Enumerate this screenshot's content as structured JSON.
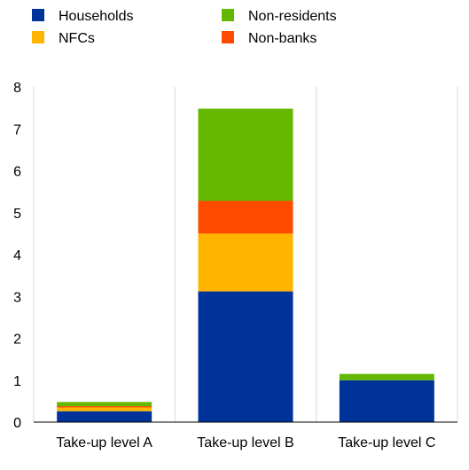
{
  "chart_data": {
    "type": "bar",
    "stacked": true,
    "title": "",
    "xlabel": "",
    "ylabel": "",
    "categories": [
      "Take-up level A",
      "Take-up level B",
      "Take-up level C"
    ],
    "ylim": [
      0,
      8
    ],
    "yticks": [
      0,
      1,
      2,
      3,
      4,
      5,
      6,
      7,
      8
    ],
    "grid": "vertical separators between categories",
    "legend_position": "top",
    "series": [
      {
        "name": "Households",
        "color": "#003399",
        "values": [
          0.26,
          3.12,
          1.0
        ]
      },
      {
        "name": "NFCs",
        "color": "#FFB400",
        "values": [
          0.09,
          1.38,
          0.0
        ]
      },
      {
        "name": "Non-banks",
        "color": "#FF4B00",
        "values": [
          0.03,
          0.78,
          0.0
        ]
      },
      {
        "name": "Non-residents",
        "color": "#65B800",
        "values": [
          0.1,
          2.2,
          0.15
        ]
      }
    ],
    "legend": [
      {
        "name": "Households",
        "color": "#003399"
      },
      {
        "name": "Non-residents",
        "color": "#65B800"
      },
      {
        "name": "NFCs",
        "color": "#FFB400"
      },
      {
        "name": "Non-banks",
        "color": "#FF4B00"
      }
    ]
  }
}
